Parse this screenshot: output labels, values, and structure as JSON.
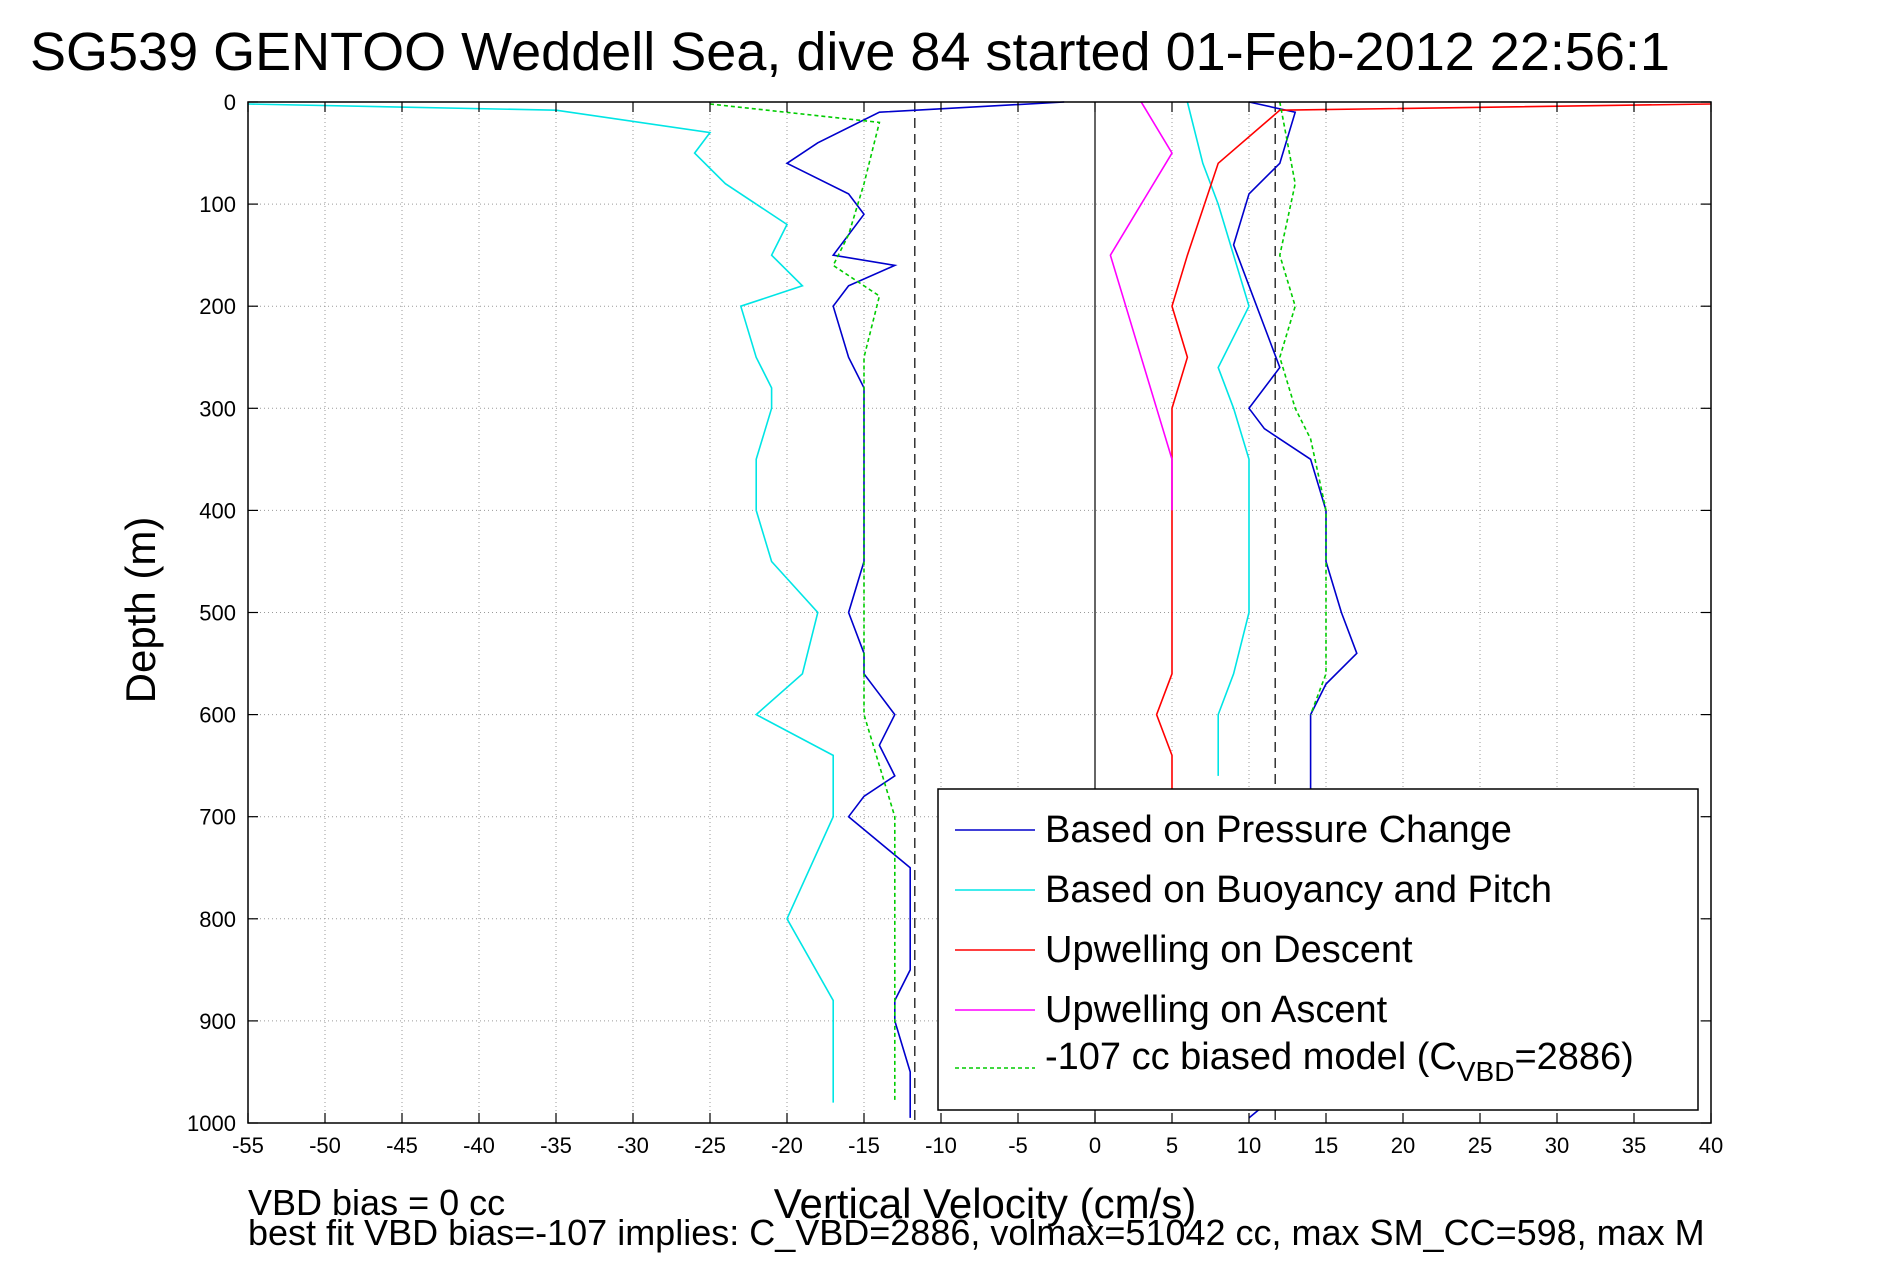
{
  "chart_data": {
    "type": "line",
    "title": "SG539 GENTOO Weddell Sea, dive 84 started 01-Feb-2012 22:56:1",
    "xlabel": "Vertical Velocity (cm/s)",
    "ylabel": "Depth (m)",
    "xlim": [
      -55,
      40
    ],
    "ylim": [
      0,
      1000
    ],
    "y_reversed": true,
    "grid": true,
    "legend_position": "bottom-right",
    "x_ticks": [
      "-55",
      "-50",
      "-45",
      "-40",
      "-35",
      "-30",
      "-25",
      "-20",
      "-15",
      "-10",
      "-5",
      "0",
      "5",
      "10",
      "15",
      "20",
      "25",
      "30",
      "35",
      "40"
    ],
    "y_ticks": [
      "0",
      "100",
      "200",
      "300",
      "400",
      "500",
      "600",
      "700",
      "800",
      "900",
      "1000"
    ],
    "reference_lines": {
      "dashed_x": [
        -11.7,
        11.7
      ],
      "solid_x": [
        0
      ]
    },
    "notes": [
      "VBD bias = 0 cc",
      "best fit VBD bias=-107 implies: C_VBD=2886, volmax=51042 cc, max SM_CC=598, max M"
    ],
    "legend": {
      "label_1": "Based on Pressure Change",
      "label_2": "Based on Buoyancy and Pitch",
      "label_3": "Upwelling on Descent",
      "label_4": "Upwelling on Ascent",
      "label_5_prefix": "-107 cc biased model (C",
      "label_5_sub": "VBD",
      "label_5_suffix": "=2886)"
    },
    "series": [
      {
        "name": "Based on Pressure Change",
        "color": "#0000cc",
        "style": "solid",
        "x": [
          -2,
          -14,
          -18,
          -20,
          -16,
          -15,
          -17,
          -13,
          -16,
          -17,
          -16,
          -15,
          -15,
          -15,
          -15,
          -15,
          -16,
          -15,
          -15,
          -14,
          -13,
          -14,
          -13,
          -15,
          -16,
          -12,
          -12,
          -12,
          -13,
          -13,
          -12,
          -12,
          -12
        ],
        "y": [
          0,
          10,
          40,
          60,
          90,
          110,
          150,
          160,
          180,
          200,
          250,
          280,
          300,
          350,
          400,
          450,
          500,
          540,
          560,
          580,
          600,
          630,
          660,
          680,
          700,
          750,
          800,
          850,
          880,
          900,
          950,
          980,
          995
        ]
      },
      {
        "name": "Based on Pressure Change",
        "color": "#0000cc",
        "style": "solid",
        "x": [
          10,
          13,
          12,
          10,
          9,
          10,
          11,
          12,
          10,
          11,
          12,
          14,
          15,
          15,
          16,
          17,
          15,
          14,
          14,
          14,
          14,
          12,
          10
        ],
        "y": [
          0,
          10,
          60,
          90,
          140,
          180,
          220,
          260,
          300,
          320,
          330,
          350,
          400,
          450,
          500,
          540,
          570,
          600,
          640,
          660,
          680,
          970,
          995
        ]
      },
      {
        "name": "Based on Buoyancy and Pitch",
        "color": "#00e5e5",
        "style": "solid",
        "x": [
          -55,
          -35,
          -25,
          -26,
          -24,
          -20,
          -21,
          -19,
          -23,
          -22,
          -21,
          -21,
          -22,
          -22,
          -21,
          -18,
          -19,
          -22,
          -17,
          -17,
          -20,
          -17,
          -17,
          -17
        ],
        "y": [
          2,
          8,
          30,
          50,
          80,
          120,
          150,
          180,
          200,
          250,
          280,
          300,
          350,
          400,
          450,
          500,
          560,
          600,
          640,
          700,
          800,
          880,
          900,
          980
        ]
      },
      {
        "name": "Based on Buoyancy and Pitch",
        "color": "#00e5e5",
        "style": "solid",
        "x": [
          6,
          7,
          8,
          9,
          10,
          8,
          9,
          10,
          10,
          10,
          10,
          9,
          8,
          8
        ],
        "y": [
          0,
          60,
          100,
          150,
          200,
          260,
          300,
          350,
          400,
          450,
          500,
          560,
          600,
          660
        ]
      },
      {
        "name": "Upwelling on Descent",
        "color": "#ff0000",
        "style": "solid",
        "x": [
          40,
          12,
          8,
          6,
          5,
          6,
          5,
          5,
          5,
          5,
          4,
          5,
          5
        ],
        "y": [
          2,
          8,
          60,
          150,
          200,
          250,
          300,
          400,
          500,
          560,
          600,
          640,
          680
        ]
      },
      {
        "name": "Upwelling on Ascent",
        "color": "#ff00ff",
        "style": "solid",
        "x": [
          3,
          5,
          3,
          1,
          2,
          3,
          4,
          5,
          5
        ],
        "y": [
          0,
          50,
          100,
          150,
          200,
          250,
          300,
          350,
          400
        ]
      },
      {
        "name": "-107 cc biased model (CVBD=2886)",
        "color": "#00cc00",
        "style": "dashed",
        "x": [
          -25,
          -14,
          -15,
          -16,
          -17,
          -14,
          -15,
          -15,
          -15,
          -15,
          -15,
          -15,
          -13,
          -13
        ],
        "y": [
          2,
          20,
          80,
          130,
          160,
          190,
          250,
          300,
          400,
          500,
          560,
          600,
          700,
          980
        ]
      },
      {
        "name": "-107 cc biased model (CVBD=2886)",
        "color": "#00cc00",
        "style": "dashed",
        "x": [
          12,
          13,
          12,
          13,
          12,
          13,
          14,
          15,
          15,
          15,
          14
        ],
        "y": [
          0,
          80,
          150,
          200,
          250,
          300,
          330,
          400,
          500,
          560,
          600
        ]
      }
    ]
  }
}
